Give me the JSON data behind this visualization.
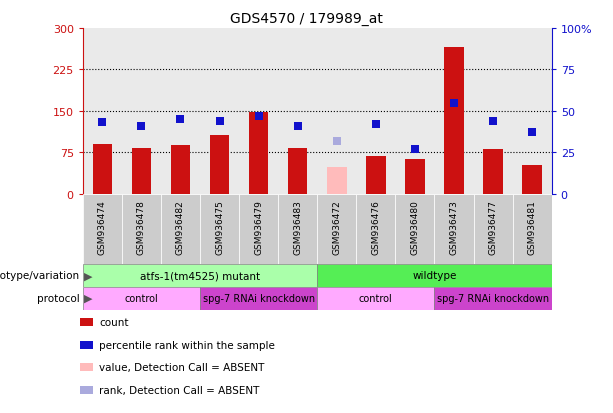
{
  "title": "GDS4570 / 179989_at",
  "samples": [
    "GSM936474",
    "GSM936478",
    "GSM936482",
    "GSM936475",
    "GSM936479",
    "GSM936483",
    "GSM936472",
    "GSM936476",
    "GSM936480",
    "GSM936473",
    "GSM936477",
    "GSM936481"
  ],
  "counts": [
    90,
    82,
    88,
    107,
    147,
    82,
    48,
    68,
    63,
    265,
    80,
    52
  ],
  "counts_absent": [
    false,
    false,
    false,
    false,
    false,
    false,
    true,
    false,
    false,
    false,
    false,
    false
  ],
  "percentile_ranks": [
    43,
    41,
    45,
    44,
    47,
    41,
    32,
    42,
    27,
    55,
    44,
    37
  ],
  "ranks_absent": [
    false,
    false,
    false,
    false,
    false,
    false,
    true,
    false,
    false,
    false,
    false,
    false
  ],
  "ylim_left": [
    0,
    300
  ],
  "ylim_right": [
    0,
    100
  ],
  "yticks_left": [
    0,
    75,
    150,
    225,
    300
  ],
  "yticks_right": [
    0,
    25,
    50,
    75,
    100
  ],
  "ytick_labels_left": [
    "0",
    "75",
    "150",
    "225",
    "300"
  ],
  "ytick_labels_right": [
    "0",
    "25",
    "50",
    "75",
    "100%"
  ],
  "hlines": [
    75,
    150,
    225
  ],
  "bar_color_present": "#cc1111",
  "bar_color_absent": "#ffbbbb",
  "dot_color_present": "#1111cc",
  "dot_color_absent": "#aaaadd",
  "dot_size": 40,
  "bar_width": 0.5,
  "genotype_groups": [
    {
      "label": "atfs-1(tm4525) mutant",
      "start": 0,
      "end": 5,
      "color": "#aaffaa"
    },
    {
      "label": "wildtype",
      "start": 6,
      "end": 11,
      "color": "#55ee55"
    }
  ],
  "protocol_groups": [
    {
      "label": "control",
      "start": 0,
      "end": 2,
      "color": "#ffaaff"
    },
    {
      "label": "spg-7 RNAi knockdown",
      "start": 3,
      "end": 5,
      "color": "#cc44cc"
    },
    {
      "label": "control",
      "start": 6,
      "end": 8,
      "color": "#ffaaff"
    },
    {
      "label": "spg-7 RNAi knockdown",
      "start": 9,
      "end": 11,
      "color": "#cc44cc"
    }
  ],
  "legend_items": [
    {
      "label": "count",
      "color": "#cc1111"
    },
    {
      "label": "percentile rank within the sample",
      "color": "#1111cc"
    },
    {
      "label": "value, Detection Call = ABSENT",
      "color": "#ffbbbb"
    },
    {
      "label": "rank, Detection Call = ABSENT",
      "color": "#aaaadd"
    }
  ],
  "left_axis_color": "#cc1111",
  "right_axis_color": "#1111cc",
  "col_bg_color": "#cccccc",
  "genotype_label": "genotype/variation",
  "protocol_label": "protocol"
}
